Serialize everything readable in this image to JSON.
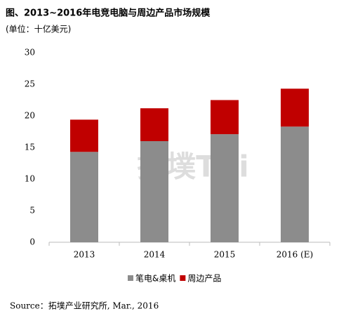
{
  "chart_data": {
    "type": "stacked_bar",
    "title": "图、2013~2016年电竞电脑与周边产品市场规模",
    "subtitle": "(单位：十亿美元)",
    "watermark": "拓墣TRi",
    "source": "Source：拓墣产业研究所, Mar., 2016",
    "categories": [
      "2013",
      "2014",
      "2015",
      "2016 (E)"
    ],
    "series": [
      {
        "name": "笔电&桌机",
        "color": "#8c8c8c",
        "values": [
          14.3,
          16.0,
          17.1,
          18.3
        ]
      },
      {
        "name": "周边产品",
        "color": "#c00000",
        "values": [
          5.1,
          5.2,
          5.4,
          6.0
        ]
      }
    ],
    "ylim": [
      0,
      30
    ],
    "yticks": [
      0,
      5,
      10,
      15,
      20,
      25,
      30
    ],
    "grid": false,
    "legend": "bottom"
  }
}
